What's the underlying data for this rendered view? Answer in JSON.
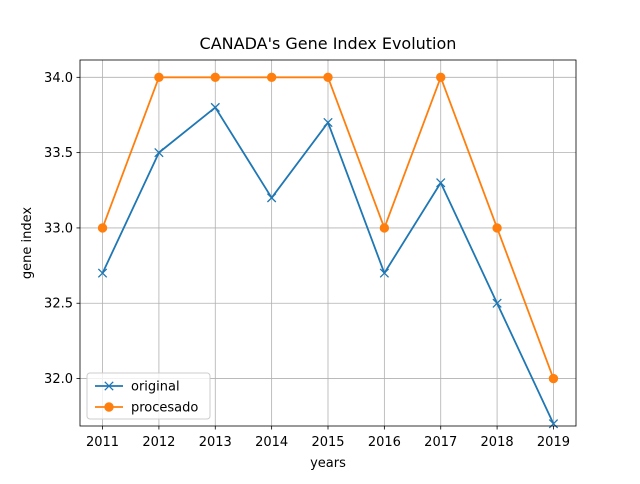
{
  "chart_data": {
    "type": "line",
    "title": "CANADA's Gene Index Evolution",
    "xlabel": "years",
    "ylabel": "gene index",
    "x": [
      2011,
      2012,
      2013,
      2014,
      2015,
      2016,
      2017,
      2018,
      2019
    ],
    "x_tick_labels": [
      "2011",
      "2012",
      "2013",
      "2014",
      "2015",
      "2016",
      "2017",
      "2018",
      "2019"
    ],
    "y_ticks": [
      32.0,
      32.5,
      33.0,
      33.5,
      34.0
    ],
    "y_tick_labels": [
      "32.0",
      "32.5",
      "33.0",
      "33.5",
      "34.0"
    ],
    "xlim": [
      2010.6,
      2019.4
    ],
    "ylim": [
      31.685,
      34.115
    ],
    "grid": true,
    "legend_position": "lower-left",
    "series": [
      {
        "name": "original",
        "color": "#1f77b4",
        "marker": "x",
        "values": [
          32.7,
          33.5,
          33.8,
          33.2,
          33.7,
          32.7,
          33.3,
          32.5,
          31.7
        ]
      },
      {
        "name": "procesado",
        "color": "#ff7f0e",
        "marker": "o",
        "values": [
          33.0,
          34.0,
          34.0,
          34.0,
          34.0,
          33.0,
          34.0,
          33.0,
          32.0
        ]
      }
    ]
  }
}
